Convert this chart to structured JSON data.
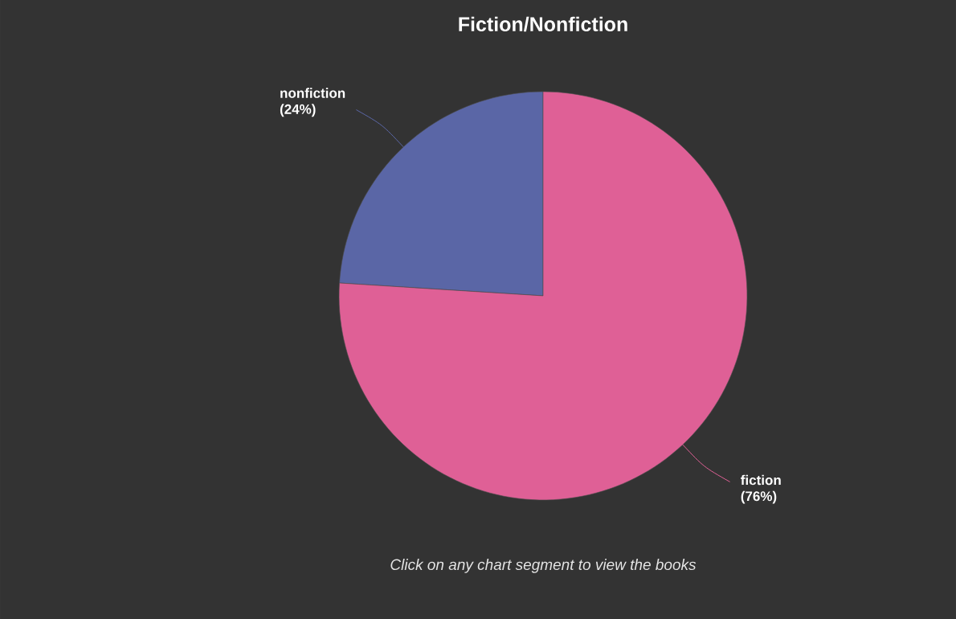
{
  "chart_data": {
    "type": "pie",
    "title": "Fiction/Nonfiction",
    "categories": [
      "nonfiction",
      "fiction"
    ],
    "values": [
      24,
      76
    ],
    "colors": [
      "#5a66a6",
      "#df6096"
    ],
    "value_labels": [
      "(24%)",
      "(76%)"
    ],
    "annotations": [
      "Click on any chart segment to view the books"
    ]
  }
}
